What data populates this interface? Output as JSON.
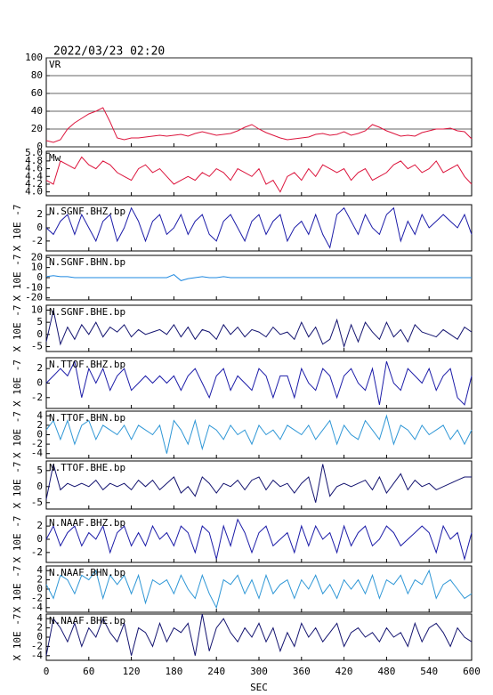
{
  "title": "2022/03/23 02:20",
  "xlabel": "SEC",
  "xlim": [
    0,
    600
  ],
  "xticks": [
    0,
    60,
    120,
    180,
    240,
    300,
    360,
    420,
    480,
    540,
    600
  ],
  "x": [
    0,
    10,
    20,
    30,
    40,
    50,
    60,
    70,
    80,
    90,
    100,
    110,
    120,
    130,
    140,
    150,
    160,
    170,
    180,
    190,
    200,
    210,
    220,
    230,
    240,
    250,
    260,
    270,
    280,
    290,
    300,
    310,
    320,
    330,
    340,
    350,
    360,
    370,
    380,
    390,
    400,
    410,
    420,
    430,
    440,
    450,
    460,
    470,
    480,
    490,
    500,
    510,
    520,
    530,
    540,
    550,
    560,
    570,
    580,
    590,
    600
  ],
  "chart_data": [
    {
      "type": "line",
      "title": "VR",
      "color": "#dc143c",
      "grid": true,
      "ylim": [
        0,
        100
      ],
      "yticks": [
        0,
        20,
        40,
        60,
        80,
        100
      ],
      "values": [
        7,
        5,
        8,
        20,
        27,
        32,
        37,
        40,
        44,
        28,
        10,
        8,
        10,
        10,
        11,
        12,
        13,
        12,
        13,
        14,
        12,
        15,
        17,
        15,
        13,
        14,
        15,
        18,
        22,
        25,
        20,
        16,
        13,
        10,
        8,
        9,
        10,
        11,
        14,
        15,
        13,
        14,
        17,
        13,
        15,
        18,
        25,
        22,
        18,
        15,
        12,
        13,
        12,
        16,
        18,
        20,
        20,
        21,
        18,
        17,
        9
      ]
    },
    {
      "type": "line",
      "title": "Mw",
      "color": "#dc143c",
      "grid": false,
      "ylim": [
        3.9,
        5.05
      ],
      "yticks": [
        {
          "value": 4,
          "label": "4.0"
        },
        4.2,
        4.4,
        4.6,
        4.8,
        {
          "value": 5,
          "label": "5.0"
        }
      ],
      "values": [
        4.3,
        4.2,
        4.8,
        4.7,
        4.6,
        4.9,
        4.7,
        4.6,
        4.8,
        4.7,
        4.5,
        4.4,
        4.3,
        4.6,
        4.7,
        4.5,
        4.6,
        4.4,
        4.2,
        4.3,
        4.4,
        4.3,
        4.5,
        4.4,
        4.6,
        4.5,
        4.3,
        4.6,
        4.5,
        4.4,
        4.6,
        4.2,
        4.3,
        4.0,
        4.4,
        4.5,
        4.3,
        4.6,
        4.4,
        4.7,
        4.6,
        4.5,
        4.6,
        4.3,
        4.5,
        4.6,
        4.3,
        4.4,
        4.5,
        4.7,
        4.8,
        4.6,
        4.7,
        4.5,
        4.6,
        4.8,
        4.5,
        4.6,
        4.7,
        4.4,
        4.2
      ]
    },
    {
      "type": "line",
      "title": "N.SGNF.BHZ.bp",
      "ylabel": "X 10E -7",
      "color": "#1c1ca8",
      "grid": false,
      "ylim": [
        -3.5,
        3.5
      ],
      "yticks": [
        -2,
        0,
        2
      ],
      "values": [
        0,
        -1,
        1,
        2,
        -1,
        2,
        0,
        -2,
        1,
        2,
        -2,
        0,
        3,
        1,
        -2,
        1,
        2,
        -1,
        0,
        2,
        -1,
        1,
        2,
        -1,
        -2,
        1,
        2,
        0,
        -2,
        1,
        2,
        -1,
        1,
        2,
        -2,
        0,
        1,
        -1,
        2,
        -1,
        -3,
        2,
        3,
        1,
        -1,
        2,
        0,
        -1,
        2,
        3,
        -2,
        1,
        -1,
        2,
        0,
        1,
        2,
        1,
        0,
        2,
        -1
      ]
    },
    {
      "type": "line",
      "title": "N.SGNF.BHN.bp",
      "ylabel": "X 10E -7",
      "color": "#1e88e0",
      "grid": false,
      "ylim": [
        -22,
        22
      ],
      "yticks": [
        -20,
        -10,
        0,
        10,
        20
      ],
      "values": [
        1,
        2,
        1,
        1,
        0,
        0,
        0,
        0,
        0,
        0,
        0,
        0,
        0,
        0,
        0,
        0,
        0,
        0,
        3,
        -3,
        -1,
        0,
        1,
        0,
        0,
        1,
        0,
        0,
        0,
        0,
        0,
        0,
        0,
        0,
        0,
        0,
        0,
        0,
        0,
        0,
        0,
        0,
        0,
        0,
        0,
        0,
        0,
        0,
        0,
        0,
        0,
        0,
        0,
        0,
        0,
        0,
        0,
        0,
        0,
        0,
        0
      ]
    },
    {
      "type": "line",
      "title": "N.SGNF.BHE.bp",
      "ylabel": "X 10E -7",
      "color": "#141470",
      "grid": false,
      "ylim": [
        -7,
        12
      ],
      "yticks": [
        -5,
        0,
        5,
        10
      ],
      "values": [
        -3,
        10,
        -4,
        3,
        -2,
        4,
        0,
        5,
        -1,
        3,
        1,
        4,
        -1,
        2,
        0,
        1,
        2,
        0,
        4,
        -1,
        3,
        -2,
        2,
        1,
        -2,
        4,
        0,
        3,
        -1,
        2,
        1,
        -1,
        3,
        0,
        1,
        -2,
        5,
        -1,
        3,
        -4,
        -2,
        6,
        -5,
        4,
        -3,
        5,
        1,
        -2,
        5,
        -1,
        2,
        -3,
        4,
        1,
        0,
        -1,
        2,
        0,
        -2,
        3,
        1
      ]
    },
    {
      "type": "line",
      "title": "N.TTOF.BHZ.bp",
      "ylabel": "X 10E -7",
      "color": "#1c1ca8",
      "grid": false,
      "ylim": [
        -3.5,
        3.5
      ],
      "yticks": [
        -2,
        0,
        2
      ],
      "values": [
        0,
        1,
        2,
        1,
        3,
        -2,
        2,
        0,
        2,
        -1,
        1,
        2,
        -1,
        0,
        1,
        0,
        1,
        0,
        1,
        -1,
        1,
        2,
        0,
        -2,
        1,
        2,
        -1,
        1,
        0,
        -1,
        2,
        1,
        -2,
        1,
        1,
        -2,
        2,
        0,
        -1,
        2,
        1,
        -2,
        1,
        2,
        0,
        -1,
        2,
        -3,
        3,
        0,
        -1,
        2,
        1,
        0,
        2,
        -1,
        1,
        2,
        -2,
        -3,
        1
      ]
    },
    {
      "type": "line",
      "title": "N.TTOF.BHN.bp",
      "ylabel": "X 10E -7",
      "color": "#2f97d6",
      "grid": false,
      "ylim": [
        -5,
        5
      ],
      "yticks": [
        -4,
        -2,
        0,
        2,
        4
      ],
      "values": [
        1,
        3,
        -1,
        3,
        -2,
        2,
        3,
        -1,
        2,
        1,
        0,
        2,
        -1,
        2,
        1,
        0,
        2,
        -4,
        3,
        1,
        -2,
        3,
        -3,
        2,
        1,
        -1,
        2,
        0,
        1,
        -2,
        2,
        0,
        1,
        -1,
        2,
        1,
        0,
        2,
        -1,
        1,
        3,
        -2,
        2,
        0,
        -1,
        3,
        1,
        -1,
        4,
        -2,
        2,
        1,
        -1,
        2,
        0,
        1,
        2,
        -1,
        1,
        -2,
        1
      ]
    },
    {
      "type": "line",
      "title": "N.TTOF.BHE.bp",
      "ylabel": "X 10E -7",
      "color": "#141470",
      "grid": false,
      "ylim": [
        -7,
        8
      ],
      "yticks": [
        -5,
        0,
        5
      ],
      "values": [
        -4,
        7,
        -1,
        1,
        0,
        1,
        0,
        2,
        -1,
        1,
        0,
        1,
        -1,
        2,
        0,
        2,
        -1,
        1,
        3,
        -2,
        0,
        -3,
        3,
        1,
        -2,
        1,
        0,
        2,
        -1,
        2,
        3,
        -1,
        2,
        0,
        1,
        -2,
        1,
        3,
        -5,
        7,
        -3,
        0,
        1,
        0,
        1,
        2,
        -1,
        3,
        -2,
        1,
        4,
        -1,
        2,
        0,
        1,
        -1,
        0,
        1,
        2,
        3,
        3
      ]
    },
    {
      "type": "line",
      "title": "N.NAAF.BHZ.bp",
      "ylabel": "X 10E -7",
      "color": "#1c1ca8",
      "grid": false,
      "ylim": [
        -3.5,
        3.5
      ],
      "yticks": [
        -2,
        0,
        2
      ],
      "values": [
        0,
        2,
        -1,
        1,
        2,
        -1,
        1,
        0,
        2,
        -2,
        1,
        2,
        -1,
        1,
        -1,
        2,
        0,
        1,
        -1,
        2,
        1,
        -2,
        2,
        1,
        -3,
        2,
        -1,
        3,
        1,
        -2,
        1,
        2,
        -1,
        0,
        1,
        -2,
        2,
        -1,
        2,
        0,
        1,
        -2,
        2,
        -1,
        1,
        2,
        -1,
        0,
        2,
        1,
        -1,
        0,
        1,
        2,
        1,
        -2,
        2,
        0,
        1,
        -3,
        1
      ]
    },
    {
      "type": "line",
      "title": "N.NAAF.BHN.bp",
      "ylabel": "X 10E -7",
      "color": "#2f97d6",
      "grid": false,
      "ylim": [
        -5,
        5
      ],
      "yticks": [
        -4,
        -2,
        0,
        2,
        4
      ],
      "values": [
        1,
        -2,
        3,
        2,
        -1,
        3,
        2,
        4,
        -2,
        3,
        1,
        3,
        -1,
        3,
        -3,
        2,
        1,
        2,
        -1,
        3,
        0,
        -2,
        3,
        -1,
        -4,
        2,
        1,
        3,
        -1,
        2,
        -2,
        3,
        -1,
        1,
        2,
        -2,
        2,
        0,
        3,
        -1,
        1,
        -2,
        2,
        0,
        2,
        -1,
        3,
        -2,
        2,
        1,
        3,
        -1,
        2,
        1,
        4,
        -2,
        1,
        2,
        0,
        -2,
        -1
      ]
    },
    {
      "type": "line",
      "title": "N.NAAF.BHE.bp",
      "ylabel": "X 10E -7",
      "color": "#141470",
      "grid": false,
      "ylim": [
        -5,
        5
      ],
      "yticks": [
        -4,
        -2,
        0,
        2,
        4
      ],
      "values": [
        -4,
        4,
        2,
        -1,
        3,
        -2,
        2,
        0,
        4,
        1,
        -1,
        3,
        -4,
        2,
        1,
        -2,
        3,
        -1,
        2,
        1,
        3,
        -4,
        5,
        -3,
        2,
        4,
        1,
        -1,
        2,
        0,
        3,
        -1,
        2,
        -3,
        1,
        -2,
        3,
        0,
        2,
        -1,
        1,
        3,
        -2,
        1,
        2,
        0,
        1,
        -1,
        2,
        0,
        1,
        -2,
        3,
        -1,
        2,
        3,
        1,
        -2,
        2,
        0,
        -1
      ]
    }
  ]
}
